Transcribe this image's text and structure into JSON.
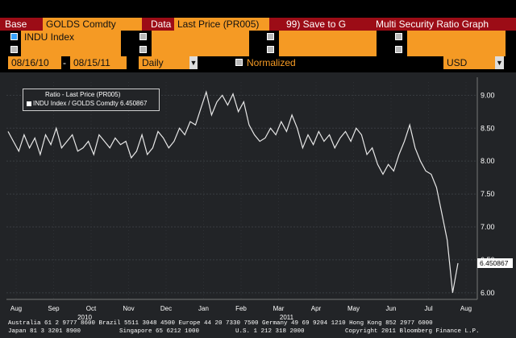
{
  "toolbar": {
    "base_label": "Base",
    "base_value": "GOLDS Comdty",
    "data_label": "Data",
    "data_value": "Last Price (PR005)",
    "save_label": "99) Save to G",
    "title": "Multi Security Ratio Graph"
  },
  "securities": [
    {
      "label": "INDU Index",
      "checked": true
    },
    {
      "label": "",
      "checked": false
    },
    {
      "label": "",
      "checked": false
    },
    {
      "label": "",
      "checked": false
    }
  ],
  "controls": {
    "start_date": "08/16/10",
    "end_date": "08/15/11",
    "frequency": "Daily",
    "normalized_label": "Normalized",
    "currency": "USD"
  },
  "chart_data": {
    "type": "line",
    "legend_title": "Ratio - Last Price (PR005)",
    "legend_entry": "INDU Index / GOLDS Comdty 6.450867",
    "last_value_label": "6.450867",
    "ylim": [
      5.9,
      9.2
    ],
    "y_ticks": [
      "9.00",
      "8.50",
      "8.00",
      "7.50",
      "7.00",
      "6.50",
      "6.00"
    ],
    "y_tick_values": [
      9.0,
      8.5,
      8.0,
      7.5,
      7.0,
      6.5,
      6.0
    ],
    "x_ticks": [
      "Aug",
      "Sep",
      "Oct",
      "Nov",
      "Dec",
      "Jan",
      "Feb",
      "Mar",
      "Apr",
      "May",
      "Jun",
      "Jul",
      "Aug"
    ],
    "year_labels": [
      "2010",
      "2011"
    ],
    "series": [
      {
        "values": [
          8.45,
          8.3,
          8.15,
          8.4,
          8.2,
          8.35,
          8.1,
          8.4,
          8.25,
          8.5,
          8.2,
          8.3,
          8.4,
          8.15,
          8.2,
          8.3,
          8.1,
          8.4,
          8.3,
          8.2,
          8.35,
          8.25,
          8.3,
          8.05,
          8.15,
          8.4,
          8.1,
          8.2,
          8.45,
          8.35,
          8.2,
          8.3,
          8.5,
          8.4,
          8.6,
          8.55,
          8.8,
          9.05,
          8.7,
          8.9,
          9.0,
          8.85,
          9.02,
          8.75,
          8.9,
          8.55,
          8.4,
          8.3,
          8.35,
          8.5,
          8.4,
          8.6,
          8.45,
          8.7,
          8.5,
          8.2,
          8.4,
          8.25,
          8.45,
          8.3,
          8.4,
          8.2,
          8.35,
          8.45,
          8.3,
          8.5,
          8.4,
          8.1,
          8.2,
          7.95,
          7.8,
          7.95,
          7.85,
          8.1,
          8.3,
          8.55,
          8.2,
          8.0,
          7.85,
          7.8,
          7.6,
          7.2,
          6.8,
          6.0,
          6.45
        ]
      }
    ],
    "line_color": "#e8e8e8",
    "grid": true
  },
  "footer": {
    "line1": "Australia 61 2 9777 8600 Brazil 5511 3048 4500 Europe 44 20 7330 7500 Germany 49 69 9204 1210 Hong Kong 852 2977 6000",
    "line2_left": "Japan 81 3 3201 8900",
    "line2_mid": "Singapore 65 6212 1000",
    "line2_right": "U.S. 1 212 318 2000",
    "copyright": "Copyright 2011 Bloomberg Finance L.P."
  }
}
